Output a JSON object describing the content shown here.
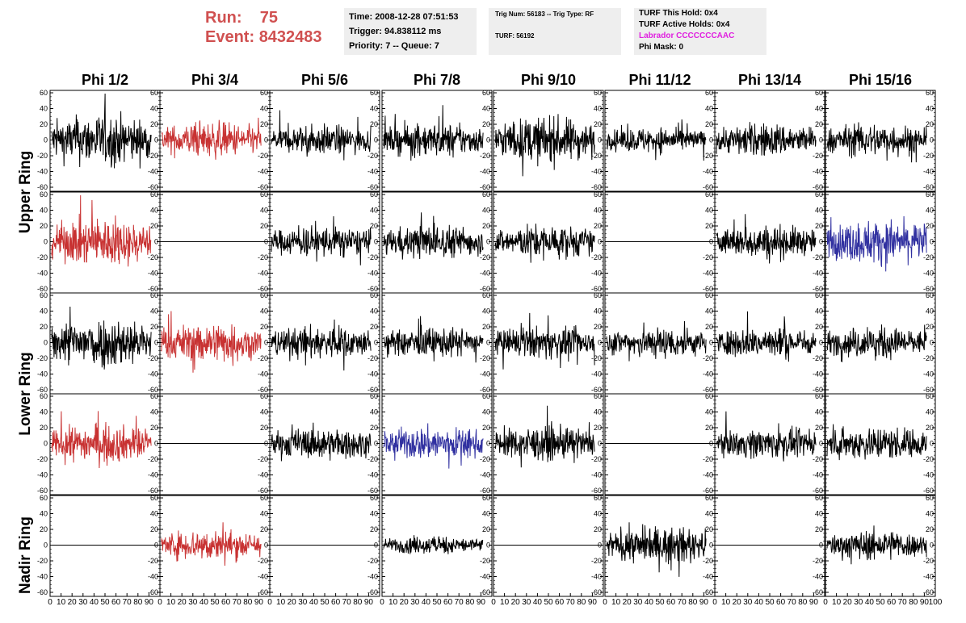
{
  "header": {
    "run_label": "Run:",
    "run_value": "75",
    "event_label": "Event:",
    "event_value": "8432483",
    "time": "Time: 2008-12-28 07:51:53",
    "trigger": "Trigger: 94.838112 ms",
    "priority": "Priority: 7 -- Queue: 7",
    "trig_num": "Trig Num: 56183 -- Trig Type: RF",
    "turf": "TURF: 56192",
    "turf_this_hold": "TURF This Hold: 0x4",
    "turf_active_holds": "TURF Active Holds: 0x4",
    "labrador": "Labrador CCCCCCCAAC",
    "phi_mask": "Phi Mask: 0",
    "colors": {
      "run": "#d05050",
      "labrador": "#e020e0"
    }
  },
  "columns": [
    "Phi 1/2",
    "Phi 3/4",
    "Phi 5/6",
    "Phi 7/8",
    "Phi 9/10",
    "Phi 11/12",
    "Phi 13/14",
    "Phi 15/16"
  ],
  "row_labels": [
    "Upper Ring",
    "Lower Ring",
    "Nadir Ring"
  ],
  "chart_data": {
    "type": "line",
    "ylim": [
      -60,
      60
    ],
    "xlim": [
      0,
      100
    ],
    "y_ticks": [
      -60,
      -40,
      -20,
      0,
      20,
      40,
      60
    ],
    "x_ticks": [
      0,
      10,
      20,
      30,
      40,
      50,
      60,
      70,
      80,
      90,
      100
    ],
    "n_points": 260,
    "series_colors": {
      "black": "#000000",
      "red": "#c83232",
      "blue": "#3030a0"
    },
    "panels": [
      [
        "black",
        "red",
        "black",
        "black",
        "black",
        "black",
        "black",
        "black"
      ],
      [
        "red",
        "flat",
        "black",
        "black",
        "black",
        "flat",
        "black",
        "blue"
      ],
      [
        "black",
        "red",
        "black",
        "black",
        "black",
        "black",
        "black",
        "black"
      ],
      [
        "red",
        "flat",
        "black",
        "blue",
        "black",
        "flat",
        "black",
        "black"
      ],
      [
        "flat",
        "red",
        "flat",
        "black",
        "flat",
        "black",
        "flat",
        "black"
      ]
    ],
    "amplitudes": [
      [
        26,
        18,
        15,
        17,
        23,
        13,
        17,
        17
      ],
      [
        24,
        0,
        16,
        17,
        17,
        0,
        17,
        22
      ],
      [
        26,
        20,
        17,
        15,
        16,
        16,
        16,
        16
      ],
      [
        19,
        0,
        16,
        17,
        17,
        0,
        15,
        17
      ],
      [
        0,
        16,
        0,
        9,
        0,
        18,
        0,
        15
      ]
    ]
  }
}
